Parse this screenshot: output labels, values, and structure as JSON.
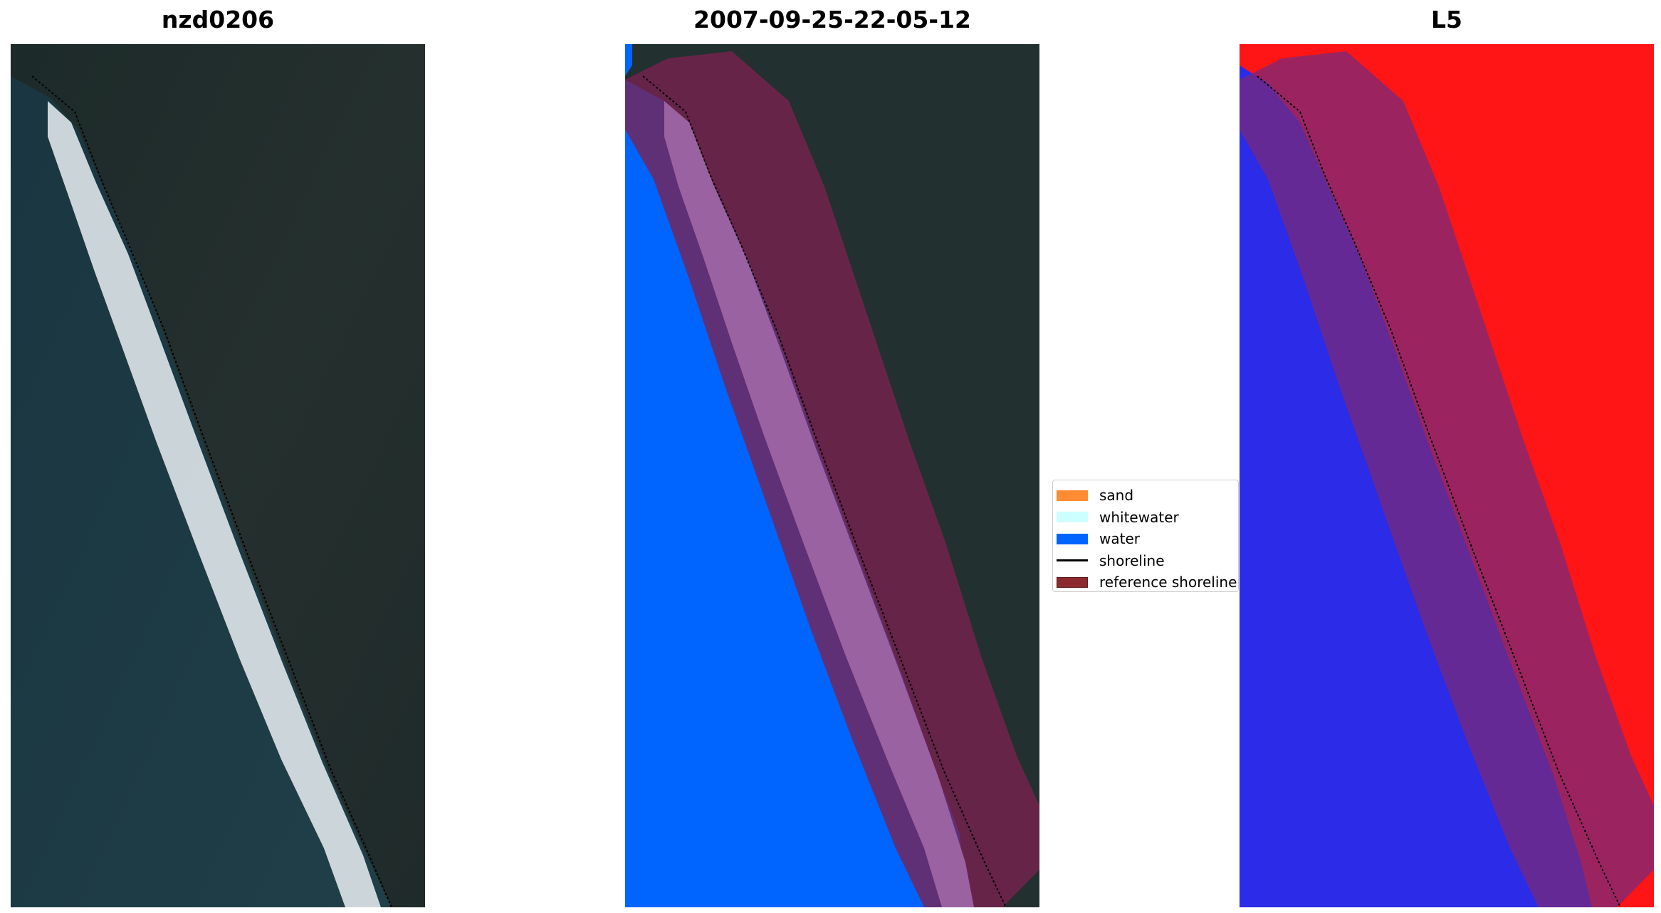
{
  "panels": [
    {
      "id": "rgb",
      "title": "nzd0206"
    },
    {
      "id": "classification",
      "title": "2007-09-25-22-05-12"
    },
    {
      "id": "index",
      "title": "L5"
    }
  ],
  "legend": {
    "items": [
      {
        "label": "sand",
        "color": "#ff8c33",
        "kind": "patch"
      },
      {
        "label": "whitewater",
        "color": "#ccffff",
        "kind": "patch"
      },
      {
        "label": "water",
        "color": "#0064ff",
        "kind": "patch"
      },
      {
        "label": "shoreline",
        "color": "#000000",
        "kind": "line"
      },
      {
        "label": "reference shoreline",
        "color": "#8b2a2e",
        "kind": "patch"
      }
    ]
  },
  "colors": {
    "land": "#1f2b2b",
    "sea": "#1e3a44",
    "surf": "#e8eef0",
    "water_class": "#0064ff",
    "buffer": "#7a2150",
    "index_high": "#ff1010",
    "index_low": "#2a2aee"
  }
}
